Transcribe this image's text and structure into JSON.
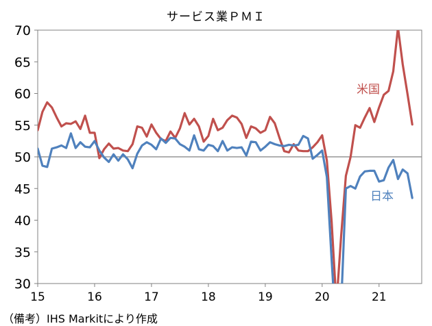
{
  "chart_data": {
    "type": "line",
    "title": "サービス業ＰＭＩ",
    "note": "（備考）IHS Markitにより作成",
    "ylim": [
      30,
      70
    ],
    "yticks": [
      30,
      35,
      40,
      45,
      50,
      55,
      60,
      65,
      70
    ],
    "xlim": [
      2015.0,
      2021.75
    ],
    "xticks": [
      {
        "label": "15",
        "value": 2015
      },
      {
        "label": "16",
        "value": 2016
      },
      {
        "label": "17",
        "value": 2017
      },
      {
        "label": "18",
        "value": 2018
      },
      {
        "label": "19",
        "value": 2019
      },
      {
        "label": "20",
        "value": 2020
      },
      {
        "label": "21",
        "value": 2021
      }
    ],
    "reference_line": 50,
    "grid": false,
    "start": "2015-01",
    "series": [
      {
        "name": "米国",
        "color": "#c0504d",
        "values": [
          54.2,
          57.1,
          58.6,
          57.8,
          56.2,
          54.8,
          55.3,
          55.2,
          55.6,
          54.4,
          56.5,
          53.8,
          53.8,
          49.8,
          51.2,
          52.1,
          51.3,
          51.4,
          51.0,
          50.9,
          52.0,
          54.8,
          54.6,
          53.2,
          55.1,
          53.8,
          52.8,
          52.5,
          54.0,
          53.0,
          54.5,
          56.9,
          55.1,
          56.0,
          54.8,
          52.4,
          53.3,
          56.0,
          54.2,
          54.6,
          55.8,
          56.5,
          56.2,
          55.2,
          53.0,
          54.8,
          54.5,
          53.8,
          54.2,
          56.3,
          55.3,
          53.0,
          50.9,
          50.7,
          52.0,
          51.0,
          50.9,
          50.9,
          51.5,
          52.3,
          53.4,
          49.4,
          39.8,
          26.7,
          37.5,
          47.0,
          50.0,
          55.0,
          54.6,
          56.2,
          57.7,
          55.5,
          57.8,
          59.8,
          60.4,
          63.5,
          70.4,
          64.6,
          59.9,
          55.1
        ]
      },
      {
        "name": "日本",
        "color": "#4f81bd",
        "values": [
          51.3,
          48.6,
          48.4,
          51.3,
          51.5,
          51.8,
          51.4,
          53.7,
          51.4,
          52.3,
          51.6,
          51.5,
          52.5,
          51.0,
          49.9,
          49.2,
          50.4,
          49.4,
          50.4,
          49.6,
          48.2,
          50.5,
          51.8,
          52.3,
          51.9,
          51.2,
          52.9,
          52.2,
          53.0,
          52.9,
          52.0,
          51.6,
          51.0,
          53.4,
          51.2,
          51.0,
          51.9,
          51.7,
          50.9,
          52.5,
          51.0,
          51.5,
          51.4,
          51.5,
          50.2,
          52.4,
          52.3,
          51.0,
          51.6,
          52.3,
          52.0,
          51.8,
          51.7,
          51.9,
          51.8,
          51.9,
          53.3,
          52.9,
          49.7,
          50.3,
          51.0,
          46.8,
          33.8,
          21.5,
          26.5,
          45.0,
          45.4,
          45.0,
          46.9,
          47.7,
          47.8,
          47.8,
          46.1,
          46.3,
          48.3,
          49.5,
          46.5,
          48.0,
          47.4,
          43.5
        ]
      }
    ]
  }
}
